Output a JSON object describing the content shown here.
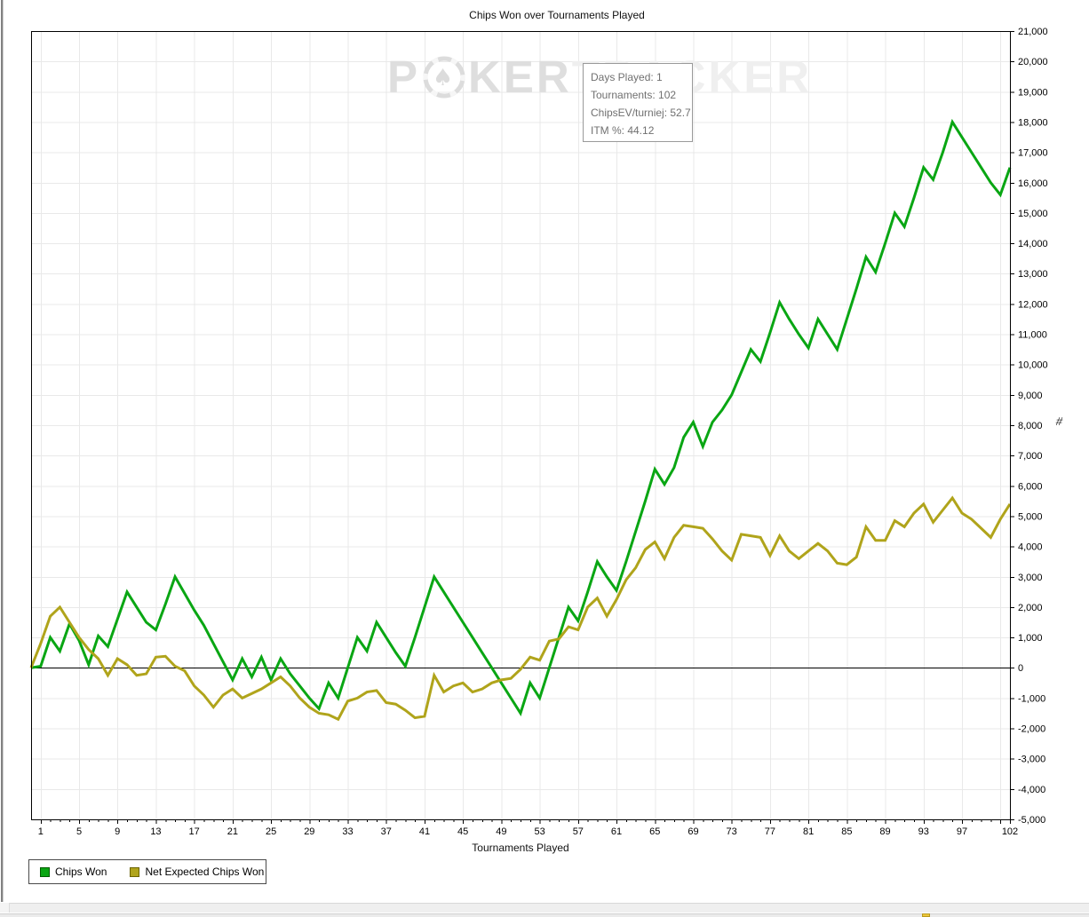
{
  "chart": {
    "title": "Chips Won over Tournaments Played",
    "x_axis_label": "Tournaments Played",
    "side_marker": "#"
  },
  "watermark": {
    "p": "P",
    "ker": "KER",
    "tracker": "TRACKER"
  },
  "tooltip": {
    "lines": [
      "Days Played: 1",
      "Tournaments: 102",
      "ChipsEV/turniej: 52.7",
      "ITM %: 44.12"
    ]
  },
  "legend": [
    {
      "label": "Chips Won",
      "color": "#09a613",
      "border": "#005c00"
    },
    {
      "label": "Net Expected Chips Won",
      "color": "#b0a41b",
      "border": "#6b6300"
    }
  ],
  "chart_data": {
    "type": "line",
    "title": "Chips Won over Tournaments Played",
    "xlabel": "Tournaments Played",
    "ylabel": "",
    "xlim": [
      0,
      102
    ],
    "ylim": [
      -5000,
      21000
    ],
    "y_tick_step": 1000,
    "x_tick_labels": [
      1,
      5,
      9,
      13,
      17,
      21,
      25,
      29,
      33,
      37,
      41,
      45,
      49,
      53,
      57,
      61,
      65,
      69,
      73,
      77,
      81,
      85,
      89,
      93,
      97,
      102
    ],
    "grid": true,
    "legend_position": "bottom-left",
    "starts_at_origin_zero": true,
    "series": [
      {
        "name": "Chips Won",
        "color": "#09a613",
        "values": [
          50,
          1000,
          550,
          1450,
          900,
          100,
          1050,
          700,
          1600,
          2500,
          2000,
          1500,
          1250,
          2100,
          3000,
          2450,
          1900,
          1400,
          800,
          200,
          -400,
          300,
          -300,
          350,
          -400,
          300,
          -200,
          -600,
          -1000,
          -1350,
          -500,
          -1000,
          0,
          1000,
          550,
          1500,
          1000,
          500,
          50,
          1000,
          2000,
          3000,
          2500,
          2000,
          1500,
          1000,
          500,
          0,
          -500,
          -1000,
          -1500,
          -500,
          -1000,
          0,
          1000,
          2000,
          1550,
          2500,
          3500,
          3000,
          2550,
          3500,
          4500,
          5500,
          6550,
          6050,
          6600,
          7600,
          8100,
          7300,
          8100,
          8500,
          9000,
          9750,
          10500,
          10100,
          11050,
          12050,
          11500,
          11000,
          10550,
          11500,
          11000,
          10500,
          11500,
          12500,
          13550,
          13050,
          14000,
          15000,
          14550,
          15500,
          16500,
          16100,
          17000,
          18000,
          17500,
          17000,
          16500,
          16000,
          15600,
          16500
        ]
      },
      {
        "name": "Net Expected Chips Won",
        "color": "#b0a41b",
        "values": [
          800,
          1700,
          2000,
          1500,
          1000,
          600,
          300,
          -250,
          300,
          100,
          -250,
          -200,
          350,
          380,
          50,
          -100,
          -600,
          -900,
          -1300,
          -900,
          -700,
          -1000,
          -850,
          -700,
          -500,
          -300,
          -600,
          -1000,
          -1300,
          -1500,
          -1550,
          -1700,
          -1100,
          -1000,
          -800,
          -750,
          -1150,
          -1200,
          -1400,
          -1650,
          -1600,
          -250,
          -800,
          -600,
          -500,
          -800,
          -700,
          -500,
          -400,
          -350,
          -50,
          350,
          250,
          880,
          950,
          1350,
          1250,
          2000,
          2300,
          1700,
          2250,
          2900,
          3300,
          3900,
          4150,
          3600,
          4300,
          4700,
          4650,
          4600,
          4250,
          3850,
          3550,
          4400,
          4350,
          4300,
          3700,
          4350,
          3850,
          3600,
          3850,
          4100,
          3850,
          3450,
          3400,
          3650,
          4650,
          4200,
          4200,
          4850,
          4650,
          5100,
          5400,
          4800,
          5200,
          5600,
          5100,
          4900,
          4600,
          4300,
          4900,
          5400
        ]
      }
    ]
  }
}
